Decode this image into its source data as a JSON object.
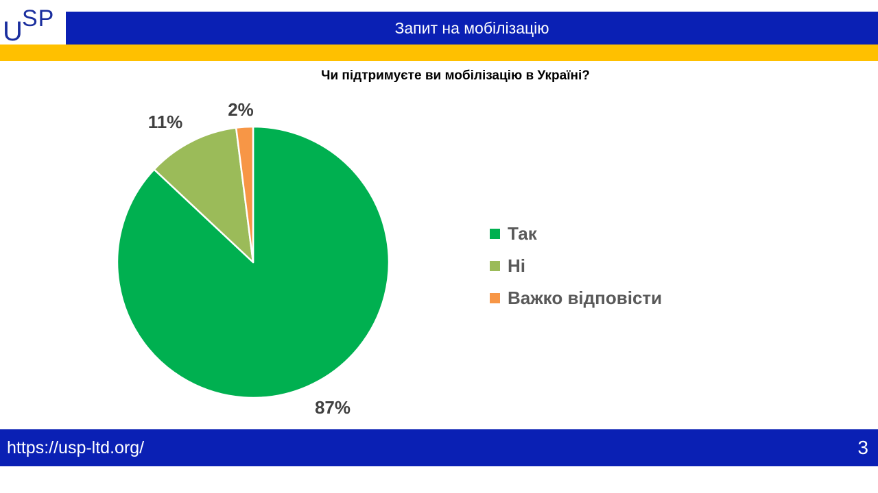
{
  "logo": {
    "u": "U",
    "sp": "SP"
  },
  "header": {
    "title": "Запит на мобілізацію"
  },
  "footer": {
    "url": "https://usp-ltd.org/",
    "page_number": "3"
  },
  "colors": {
    "header_blue": "#0a20b4",
    "header_yellow": "#ffc000",
    "logo_text": "#1a2e9e"
  },
  "chart_data": {
    "type": "pie",
    "title": "Чи підтримуєте ви мобілізацію в Україні?",
    "legend_position": "right",
    "slices": [
      {
        "label": "Так",
        "value": 87,
        "value_label": "87%",
        "color": "#00b050"
      },
      {
        "label": "Ні",
        "value": 11,
        "value_label": "11%",
        "color": "#9bbb59"
      },
      {
        "label": "Важко відповісти",
        "value": 2,
        "value_label": "2%",
        "color": "#f79646"
      }
    ]
  }
}
